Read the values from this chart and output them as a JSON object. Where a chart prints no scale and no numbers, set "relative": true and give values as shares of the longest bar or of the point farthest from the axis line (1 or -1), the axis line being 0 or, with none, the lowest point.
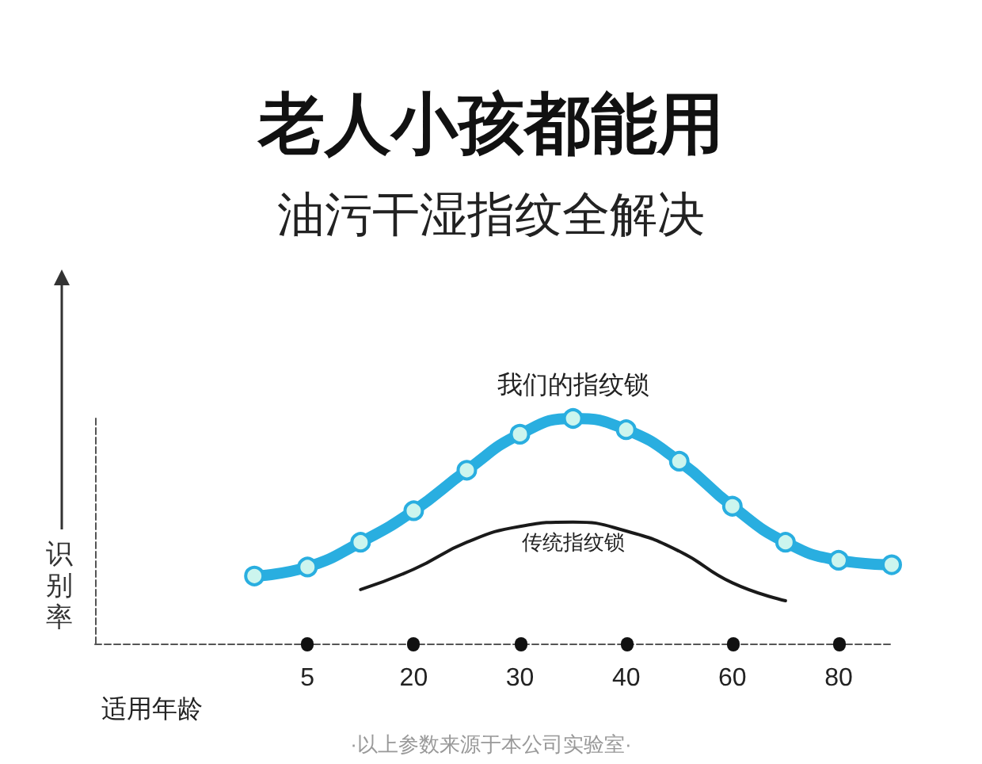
{
  "chart_data": {
    "type": "line",
    "relative": true,
    "title": "老人小孩都能用",
    "subtitle": "油污干湿指纹全解决",
    "xlabel": "适用年龄",
    "ylabel": "识别率",
    "categories": [
      null,
      null,
      null,
      null,
      "5",
      null,
      "20",
      null,
      "30",
      null,
      "40",
      null,
      "60",
      null,
      "80",
      null
    ],
    "series": [
      {
        "name": "我们的指纹锁",
        "color": "#29aee0",
        "marker": "circle",
        "values": [
          null,
          null,
          null,
          0.3,
          0.34,
          0.45,
          0.59,
          0.77,
          0.93,
          1.0,
          0.95,
          0.81,
          0.61,
          0.45,
          0.37,
          0.35
        ]
      },
      {
        "name": "传统指纹锁",
        "color": "#1a1a1a",
        "marker": "none",
        "values": [
          null,
          null,
          null,
          null,
          null,
          0.24,
          0.33,
          0.45,
          0.52,
          0.54,
          0.5,
          0.41,
          0.27,
          0.19,
          null,
          null
        ]
      }
    ],
    "annotations": [
      "·以上参数来源于本公司实验室·"
    ],
    "grid": false,
    "legend": false
  }
}
